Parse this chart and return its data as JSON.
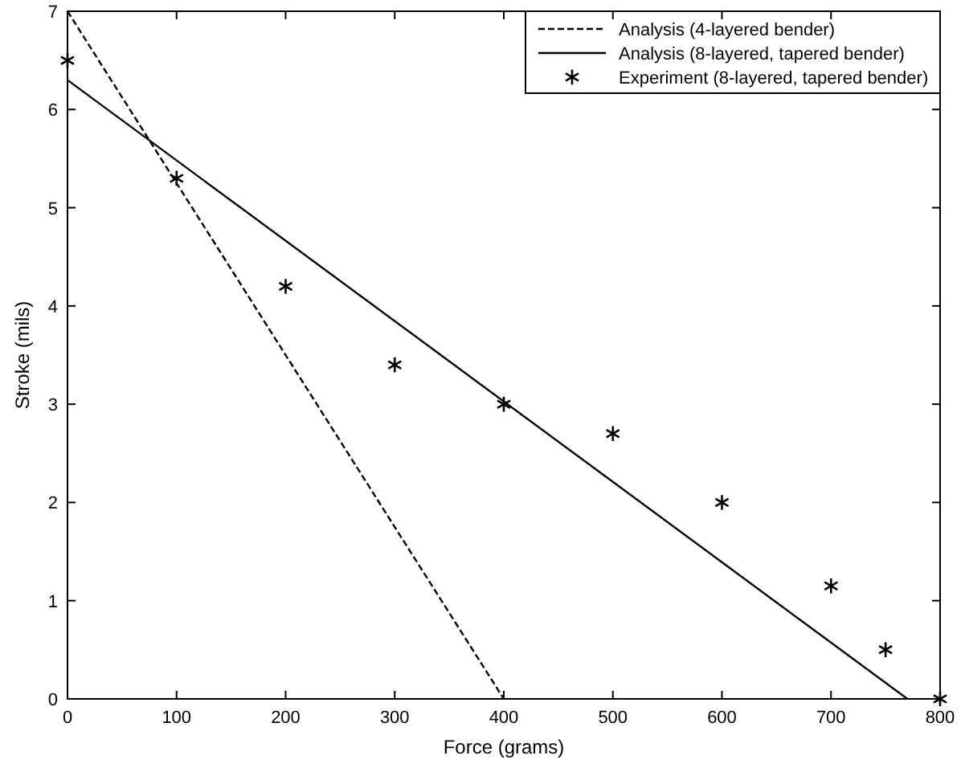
{
  "chart_data": {
    "type": "line",
    "xlabel": "Force (grams)",
    "ylabel": "Stroke (mils)",
    "xlim": [
      0,
      800
    ],
    "ylim": [
      0,
      7
    ],
    "xticks": [
      0,
      100,
      200,
      300,
      400,
      500,
      600,
      700,
      800
    ],
    "yticks": [
      0,
      1,
      2,
      3,
      4,
      5,
      6,
      7
    ],
    "grid": false,
    "legend": "top right",
    "series": [
      {
        "name": "Analysis (4-layered bender)",
        "color": "#000000",
        "line_style": "dashed",
        "marker": "none",
        "x": [
          0,
          400
        ],
        "values": [
          7,
          0
        ]
      },
      {
        "name": "Analysis (8-layered, tapered bender)",
        "color": "#000000",
        "line_style": "solid",
        "marker": "none",
        "x": [
          0,
          770
        ],
        "values": [
          6.3,
          0
        ]
      },
      {
        "name": "Experiment (8-layered, tapered bender)",
        "type": "scatter",
        "color": "#000000",
        "marker": "cross",
        "x": [
          0,
          100,
          200,
          300,
          400,
          500,
          600,
          700,
          750,
          800
        ],
        "values": [
          6.5,
          5.3,
          4.2,
          3.4,
          3.0,
          2.7,
          2.0,
          1.15,
          0.5,
          0
        ]
      }
    ]
  }
}
